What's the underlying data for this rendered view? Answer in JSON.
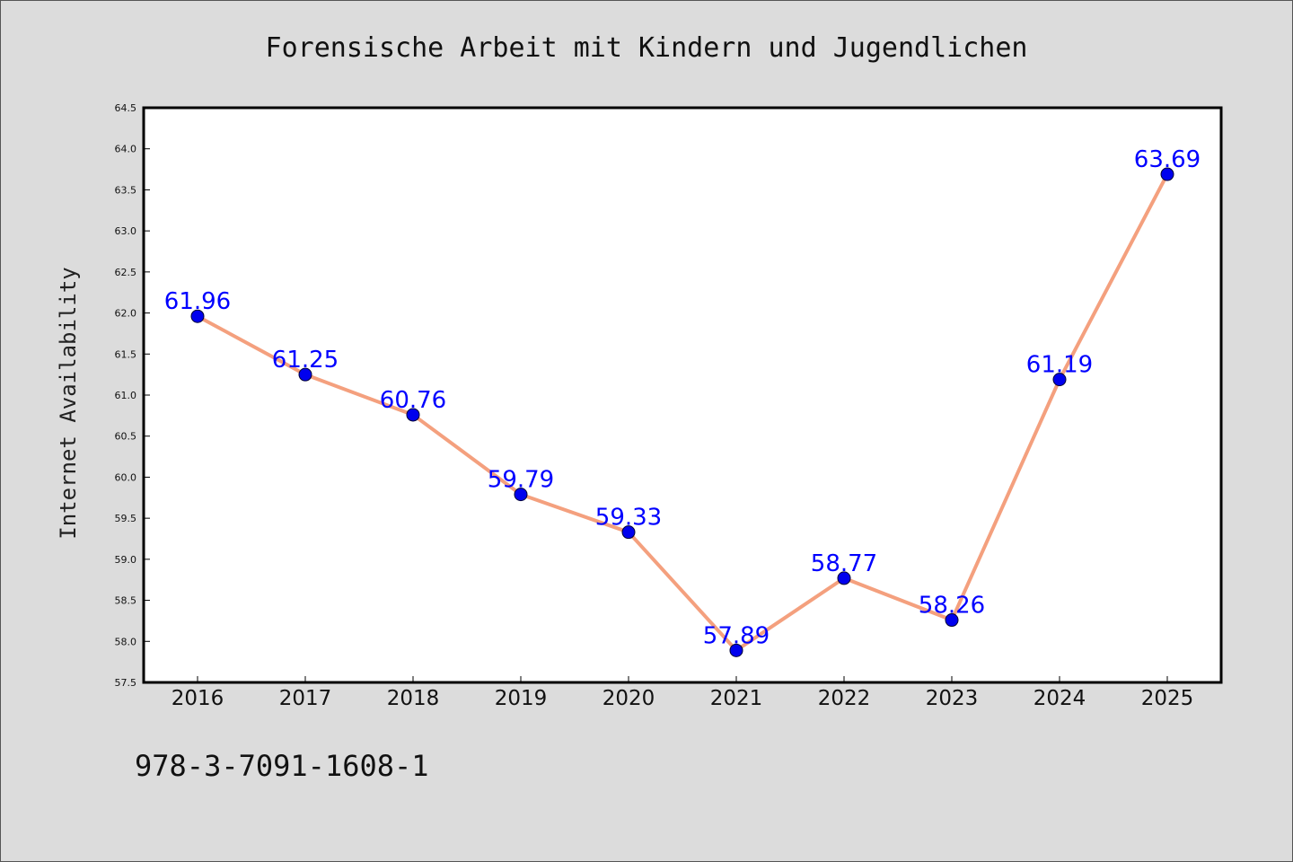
{
  "chart_data": {
    "type": "line",
    "title": "Forensische Arbeit mit Kindern und Jugendlichen",
    "ylabel": "Internet Availability",
    "xlabel": "",
    "categories": [
      "2016",
      "2017",
      "2018",
      "2019",
      "2020",
      "2021",
      "2022",
      "2023",
      "2024",
      "2025"
    ],
    "series": [
      {
        "values": [
          61.96,
          61.25,
          60.76,
          59.79,
          59.33,
          57.89,
          58.77,
          58.26,
          61.19,
          63.69
        ]
      }
    ],
    "data_labels": [
      "61.96",
      "61.25",
      "60.76",
      "59.79",
      "59.33",
      "57.89",
      "58.77",
      "58.26",
      "61.19",
      "63.69"
    ],
    "ylim": [
      57.5,
      64.5
    ],
    "yticks": [
      "57.5",
      "58.0",
      "58.5",
      "59.0",
      "59.5",
      "60.0",
      "60.5",
      "61.0",
      "61.5",
      "62.0",
      "62.5",
      "63.0",
      "63.5",
      "64.0",
      "64.5"
    ],
    "grid": false,
    "colors": {
      "line": "#f4a07e",
      "marker": "#0000ee",
      "label": "#0000ff",
      "background": "#dcdcdc",
      "plot_background": "#ffffff"
    }
  },
  "footer_text": "978-3-7091-1608-1"
}
